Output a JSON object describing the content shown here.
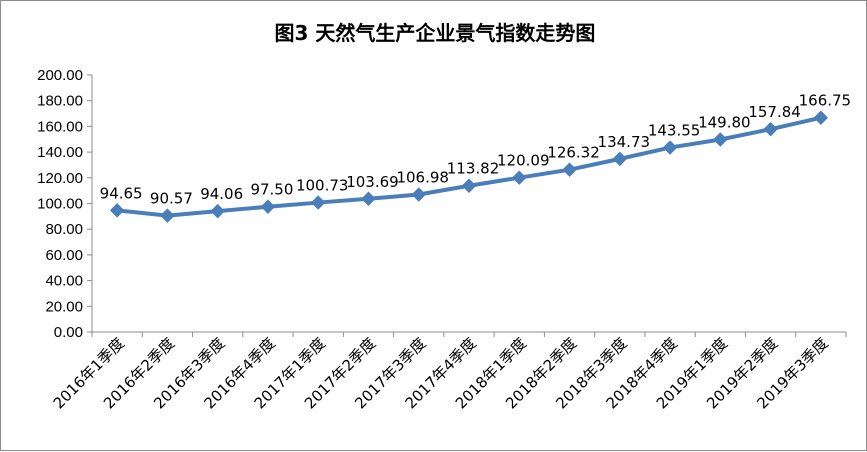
{
  "chart_data": {
    "type": "line",
    "title": "图3 天然气生产企业景气指数走势图",
    "xlabel": "",
    "ylabel": "",
    "ylim": [
      0,
      200
    ],
    "y_ticks": [
      "0.00",
      "20.00",
      "40.00",
      "60.00",
      "80.00",
      "100.00",
      "120.00",
      "140.00",
      "160.00",
      "180.00",
      "200.00"
    ],
    "grid": false,
    "legend": "none",
    "categories": [
      "2016年1季度",
      "2016年2季度",
      "2016年3季度",
      "2016年4季度",
      "2017年1季度",
      "2017年2季度",
      "2017年3季度",
      "2017年4季度",
      "2018年1季度",
      "2018年2季度",
      "2018年3季度",
      "2018年4季度",
      "2019年1季度",
      "2019年2季度",
      "2019年3季度"
    ],
    "series": [
      {
        "values": [
          94.65,
          90.57,
          94.06,
          97.5,
          100.73,
          103.69,
          106.98,
          113.82,
          120.09,
          126.32,
          134.73,
          143.55,
          149.8,
          157.84,
          166.75
        ],
        "labels": [
          "94.65",
          "90.57",
          "94.06",
          "97.50",
          "100.73",
          "103.69",
          "106.98",
          "113.82",
          "120.09",
          "126.32",
          "134.73",
          "143.55",
          "149.80",
          "157.84",
          "166.75"
        ],
        "color": "#4a7ebb",
        "marker": "diamond"
      }
    ]
  }
}
